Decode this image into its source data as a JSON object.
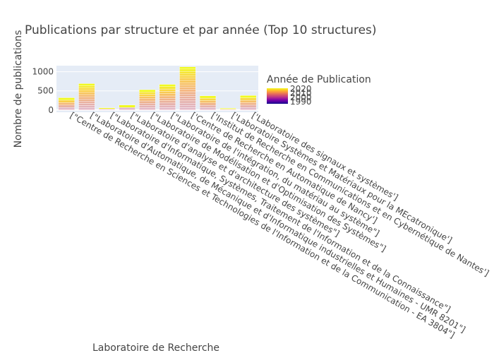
{
  "chart_data": {
    "type": "bar",
    "stacked": true,
    "title": "Publications par structure et par année (Top 10 structures)",
    "xlabel": "Laboratoire de Recherche",
    "ylabel": "Nombre de publications",
    "ylim": [
      -60,
      1160
    ],
    "yticks": [
      0,
      500,
      1000
    ],
    "ytick_labels": [
      "0",
      "500",
      "1000"
    ],
    "grid": true,
    "categories": [
      "[\"Centre de Recherche en Sciences et Technologies de l'Information et de la Communication - EA 3804\"]",
      "[\"Laboratoire d'Automatique, de Mécanique et d'Informatique industrielles et Humaines - UMR 8201\"]",
      "[\"Laboratoire d'Informatique, Systèmes, Traitement de l'Information et de la Connaissance\"]",
      "[\"Laboratoire d'analyse et d'architecture des systèmes\"]",
      "[\"Laboratoire de Modélisation et d'Optimisation des Systèmes\"]",
      "[\"Laboratoire de l'intégration, du matériau au système\"]",
      "['Centre de Recherche en Automatique de Nancy']",
      "['Institut de Recherche en Communications et en Cybernétique de Nantes']",
      "['Laboratoire Systèmes et Matériaux pour la MEcatronique']",
      "['Laboratoire des signaux et systèmes']"
    ],
    "values": [
      320,
      690,
      55,
      130,
      530,
      670,
      1130,
      370,
      45,
      380
    ],
    "colorbar": {
      "title": "Année de Publication",
      "min": 1985,
      "max": 2022,
      "tick_labels": [
        "2020",
        "2010",
        "2000",
        "1990"
      ],
      "tick_values": [
        2020,
        2010,
        2000,
        1990
      ],
      "colors": [
        "#0d0887",
        "#46039f",
        "#7201a8",
        "#9c179e",
        "#bd3786",
        "#d8576b",
        "#ed7953",
        "#fb9f3a",
        "#fdca26",
        "#f0f921"
      ]
    },
    "colors": {
      "plot_bg": "#e5ecf6",
      "grid": "#ffffff"
    }
  }
}
